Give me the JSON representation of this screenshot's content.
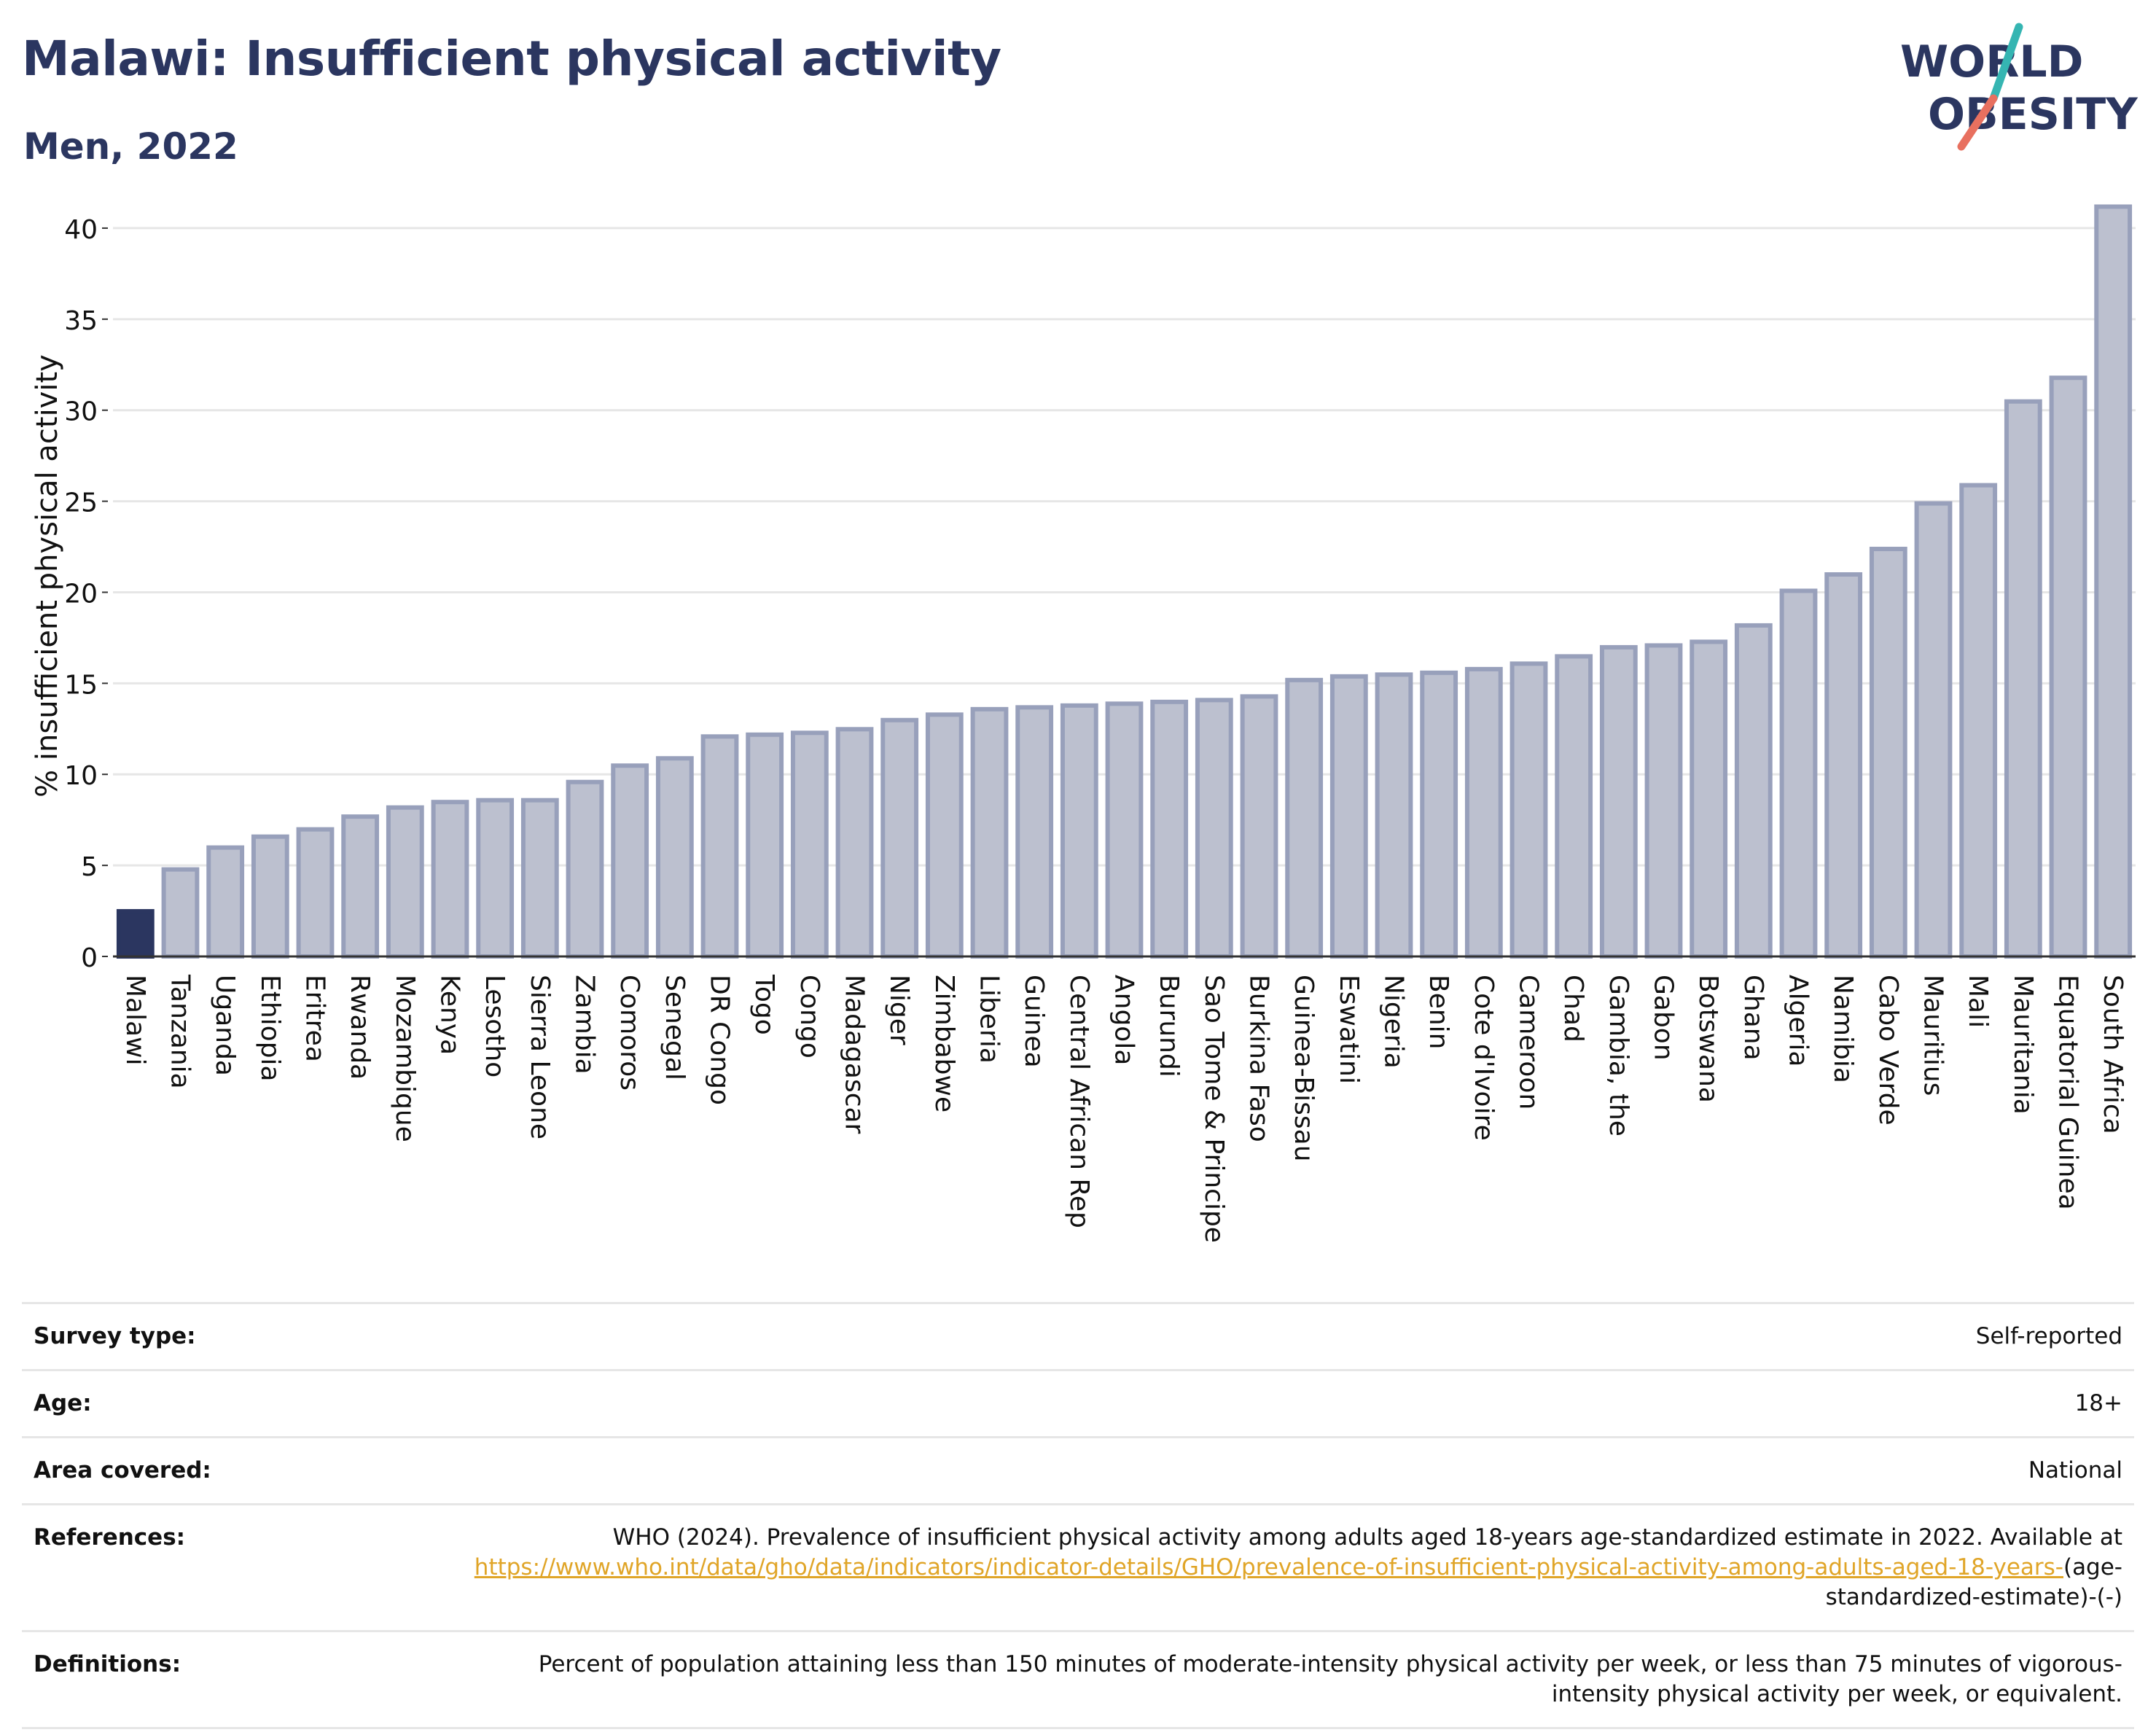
{
  "title": "Malawi: Insufficient physical activity",
  "subtitle": "Men, 2022",
  "logo": {
    "line1": "WORLD",
    "line2": "OBESITY",
    "colors": {
      "text": "#2b3660",
      "slash_teal": "#35b5b2",
      "slash_coral": "#e8705f"
    }
  },
  "colors": {
    "highlight_bar": "#2b3660",
    "bar_fill": "#bcc0cf",
    "bar_edge": "#98a0bb",
    "grid": "#e6e6e6",
    "axis": "#333333",
    "link": "#e0a528"
  },
  "chart_data": {
    "type": "bar",
    "ylabel": "% insufficient physical activity",
    "xlabel": "",
    "ylim": [
      0,
      43
    ],
    "yticks": [
      0,
      5,
      10,
      15,
      20,
      25,
      30,
      35,
      40
    ],
    "grid": true,
    "highlight": "Malawi",
    "categories": [
      "Malawi",
      "Tanzania",
      "Uganda",
      "Ethiopia",
      "Eritrea",
      "Rwanda",
      "Mozambique",
      "Kenya",
      "Lesotho",
      "Sierra Leone",
      "Zambia",
      "Comoros",
      "Senegal",
      "DR Congo",
      "Togo",
      "Congo",
      "Madagascar",
      "Niger",
      "Zimbabwe",
      "Liberia",
      "Guinea",
      "Central African Rep",
      "Angola",
      "Burundi",
      "Sao Tome & Principe",
      "Burkina Faso",
      "Guinea-Bissau",
      "Eswatini",
      "Nigeria",
      "Benin",
      "Cote d'Ivoire",
      "Cameroon",
      "Chad",
      "Gambia, the",
      "Gabon",
      "Botswana",
      "Ghana",
      "Algeria",
      "Namibia",
      "Cabo Verde",
      "Mauritius",
      "Mali",
      "Mauritania",
      "Equatorial Guinea",
      "South Africa"
    ],
    "values": [
      2.6,
      4.9,
      6.1,
      6.7,
      7.1,
      7.8,
      8.3,
      8.6,
      8.7,
      8.7,
      9.7,
      10.6,
      11.0,
      12.2,
      12.3,
      12.4,
      12.6,
      13.1,
      13.4,
      13.7,
      13.8,
      13.9,
      14.0,
      14.1,
      14.2,
      14.4,
      15.3,
      15.5,
      15.6,
      15.7,
      15.9,
      16.2,
      16.6,
      17.1,
      17.2,
      17.4,
      18.3,
      20.2,
      21.1,
      22.5,
      25.0,
      26.0,
      30.6,
      31.9,
      41.3
    ]
  },
  "footer": {
    "rows": [
      {
        "label": "Survey type:",
        "value": "Self-reported"
      },
      {
        "label": "Age:",
        "value": "18+"
      },
      {
        "label": "Area covered:",
        "value": "National"
      }
    ],
    "references": {
      "label": "References:",
      "text_before": "WHO (2024). Prevalence of insufficient physical activity among adults aged 18-years age-standardized estimate in 2022. Available at ",
      "link": "https://www.who.int/data/gho/data/indicators/indicator-details/GHO/prevalence-of-insufficient-physical-activity-among-adults-aged-18-years-",
      "text_after": "(age-standardized-estimate)-(-)"
    },
    "definitions": {
      "label": "Definitions:",
      "value": "Percent of population attaining less than 150 minutes of moderate-intensity physical activity per week, or less than 75 minutes of vigorous-intensity physical activity per week, or equivalent."
    }
  }
}
